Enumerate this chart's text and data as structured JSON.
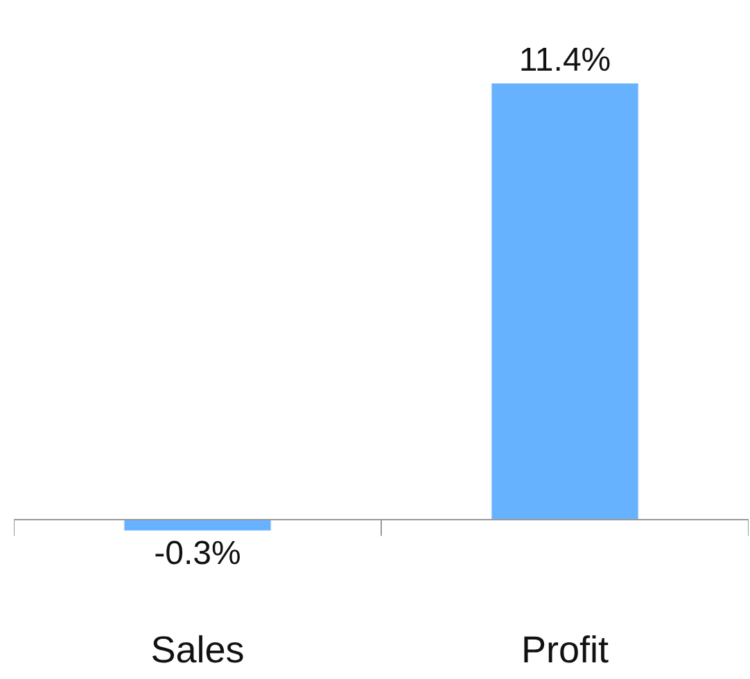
{
  "chart_data": {
    "type": "bar",
    "categories": [
      "Sales",
      "Profit"
    ],
    "values": [
      -0.3,
      11.4
    ],
    "color": "#66b2ff",
    "value_labels": [
      "-0.3%",
      "11.4%"
    ]
  }
}
